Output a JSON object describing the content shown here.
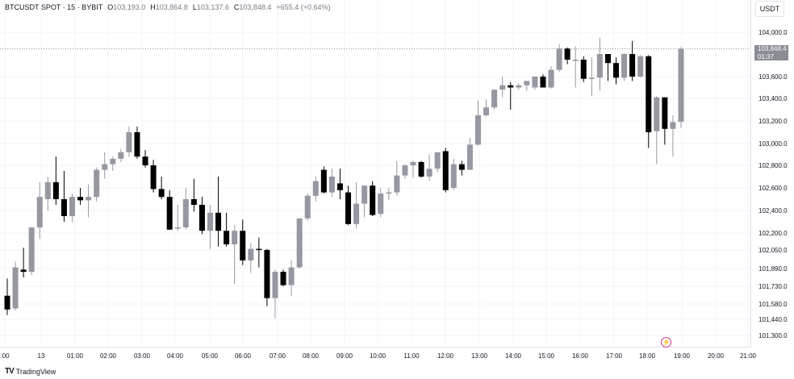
{
  "header": {
    "symbol": "BTCUSDT SPOT · 15 · BYBIT",
    "o_label": "O",
    "o_value": "103,193.0",
    "h_label": "H",
    "h_value": "103,864.8",
    "l_label": "L",
    "l_value": "103,137.6",
    "c_label": "C",
    "c_value": "103,848.4",
    "change": "+655.4 (+0.64%)"
  },
  "currency_button": "USDT",
  "price_badge": {
    "price": "103,848.4",
    "countdown": "01:37"
  },
  "footer": {
    "logo": "TV",
    "brand": "TradingView"
  },
  "icons": {
    "alerts": "lightning-icon"
  },
  "colors": {
    "up": "#9598a1",
    "down": "#000000",
    "grid": "#f0f3fa",
    "badge": "#8a8d95"
  },
  "chart_data": {
    "type": "candlestick",
    "title": "BTCUSDT SPOT · 15 · BYBIT",
    "y_tick_labels": [
      "104,000.0",
      "103,600.0",
      "103,400.0",
      "103,200.0",
      "103,000.0",
      "102,800.0",
      "102,600.0",
      "102,400.0",
      "102,200.0",
      "102,050.0",
      "101,890.0",
      "101,730.0",
      "101,580.0",
      "101,440.0",
      "101,300.0"
    ],
    "x_tick_labels": [
      ":00",
      "13",
      "01:00",
      "02:00",
      "03:00",
      "04:00",
      "05:00",
      "06:00",
      "07:00",
      "08:00",
      "09:00",
      "10:00",
      "11:00",
      "12:00",
      "13:00",
      "14:00",
      "15:00",
      "16:00",
      "17:00",
      "18:00",
      "19:00",
      "20:00",
      "21:00"
    ],
    "last_price": 103848.4,
    "candles": [
      {
        "o": 101650,
        "h": 101800,
        "l": 101480,
        "c": 101530
      },
      {
        "o": 101540,
        "h": 101950,
        "l": 101520,
        "c": 101900
      },
      {
        "o": 101880,
        "h": 102070,
        "l": 101810,
        "c": 101860
      },
      {
        "o": 101860,
        "h": 102250,
        "l": 101830,
        "c": 102250
      },
      {
        "o": 102250,
        "h": 102650,
        "l": 102150,
        "c": 102520
      },
      {
        "o": 102500,
        "h": 102700,
        "l": 102400,
        "c": 102650
      },
      {
        "o": 102650,
        "h": 102880,
        "l": 102450,
        "c": 102500
      },
      {
        "o": 102500,
        "h": 102750,
        "l": 102300,
        "c": 102350
      },
      {
        "o": 102350,
        "h": 102550,
        "l": 102300,
        "c": 102520
      },
      {
        "o": 102520,
        "h": 102600,
        "l": 102450,
        "c": 102490
      },
      {
        "o": 102490,
        "h": 102630,
        "l": 102340,
        "c": 102520
      },
      {
        "o": 102520,
        "h": 102780,
        "l": 102480,
        "c": 102760
      },
      {
        "o": 102760,
        "h": 102920,
        "l": 102680,
        "c": 102810
      },
      {
        "o": 102810,
        "h": 102880,
        "l": 102750,
        "c": 102860
      },
      {
        "o": 102860,
        "h": 102950,
        "l": 102830,
        "c": 102920
      },
      {
        "o": 102920,
        "h": 103150,
        "l": 102880,
        "c": 103100
      },
      {
        "o": 103100,
        "h": 103150,
        "l": 102860,
        "c": 102880
      },
      {
        "o": 102880,
        "h": 102940,
        "l": 102780,
        "c": 102800
      },
      {
        "o": 102800,
        "h": 102850,
        "l": 102560,
        "c": 102590
      },
      {
        "o": 102590,
        "h": 102700,
        "l": 102500,
        "c": 102520
      },
      {
        "o": 102520,
        "h": 102580,
        "l": 102230,
        "c": 102230
      },
      {
        "o": 102240,
        "h": 102450,
        "l": 102220,
        "c": 102250
      },
      {
        "o": 102250,
        "h": 102600,
        "l": 102230,
        "c": 102500
      },
      {
        "o": 102500,
        "h": 102680,
        "l": 102390,
        "c": 102450
      },
      {
        "o": 102450,
        "h": 102520,
        "l": 102190,
        "c": 102220
      },
      {
        "o": 102220,
        "h": 102450,
        "l": 102060,
        "c": 102380
      },
      {
        "o": 102380,
        "h": 102700,
        "l": 102080,
        "c": 102220
      },
      {
        "o": 102220,
        "h": 102380,
        "l": 102080,
        "c": 102100
      },
      {
        "o": 102100,
        "h": 102270,
        "l": 101750,
        "c": 102220
      },
      {
        "o": 102220,
        "h": 102320,
        "l": 101920,
        "c": 101960
      },
      {
        "o": 101960,
        "h": 102110,
        "l": 101850,
        "c": 102060
      },
      {
        "o": 102060,
        "h": 102160,
        "l": 101900,
        "c": 102050
      },
      {
        "o": 102050,
        "h": 102060,
        "l": 101560,
        "c": 101630
      },
      {
        "o": 101630,
        "h": 101880,
        "l": 101450,
        "c": 101860
      },
      {
        "o": 101860,
        "h": 101880,
        "l": 101730,
        "c": 101740
      },
      {
        "o": 101740,
        "h": 101960,
        "l": 101650,
        "c": 101900
      },
      {
        "o": 101900,
        "h": 102330,
        "l": 101890,
        "c": 102330
      },
      {
        "o": 102330,
        "h": 102550,
        "l": 102310,
        "c": 102530
      },
      {
        "o": 102530,
        "h": 102700,
        "l": 102480,
        "c": 102660
      },
      {
        "o": 102760,
        "h": 102790,
        "l": 102550,
        "c": 102560
      },
      {
        "o": 102560,
        "h": 102770,
        "l": 102520,
        "c": 102700
      },
      {
        "o": 102640,
        "h": 102770,
        "l": 102500,
        "c": 102580
      },
      {
        "o": 102560,
        "h": 102620,
        "l": 102270,
        "c": 102280
      },
      {
        "o": 102280,
        "h": 102650,
        "l": 102240,
        "c": 102460
      },
      {
        "o": 102460,
        "h": 102620,
        "l": 102340,
        "c": 102620
      },
      {
        "o": 102620,
        "h": 102660,
        "l": 102350,
        "c": 102360
      },
      {
        "o": 102370,
        "h": 102600,
        "l": 102340,
        "c": 102550
      },
      {
        "o": 102550,
        "h": 102600,
        "l": 102490,
        "c": 102560
      },
      {
        "o": 102560,
        "h": 102840,
        "l": 102530,
        "c": 102710
      },
      {
        "o": 102710,
        "h": 102810,
        "l": 102680,
        "c": 102800
      },
      {
        "o": 102800,
        "h": 102840,
        "l": 102690,
        "c": 102830
      },
      {
        "o": 102830,
        "h": 102840,
        "l": 102690,
        "c": 102700
      },
      {
        "o": 102700,
        "h": 102900,
        "l": 102660,
        "c": 102770
      },
      {
        "o": 102770,
        "h": 102920,
        "l": 102740,
        "c": 102920
      },
      {
        "o": 102930,
        "h": 102960,
        "l": 102560,
        "c": 102580
      },
      {
        "o": 102600,
        "h": 102860,
        "l": 102580,
        "c": 102810
      },
      {
        "o": 102810,
        "h": 102840,
        "l": 102710,
        "c": 102760
      },
      {
        "o": 102760,
        "h": 103050,
        "l": 102760,
        "c": 102990
      },
      {
        "o": 102990,
        "h": 103380,
        "l": 102980,
        "c": 103250
      },
      {
        "o": 103250,
        "h": 103390,
        "l": 103240,
        "c": 103320
      },
      {
        "o": 103320,
        "h": 103460,
        "l": 103300,
        "c": 103480
      },
      {
        "o": 103480,
        "h": 103600,
        "l": 103410,
        "c": 103520
      },
      {
        "o": 103520,
        "h": 103550,
        "l": 103300,
        "c": 103500
      },
      {
        "o": 103500,
        "h": 103540,
        "l": 103480,
        "c": 103520
      },
      {
        "o": 103520,
        "h": 103560,
        "l": 103470,
        "c": 103560
      },
      {
        "o": 103500,
        "h": 103590,
        "l": 103480,
        "c": 103600
      },
      {
        "o": 103600,
        "h": 103620,
        "l": 103500,
        "c": 103500
      },
      {
        "o": 103500,
        "h": 103690,
        "l": 103490,
        "c": 103660
      },
      {
        "o": 103660,
        "h": 103890,
        "l": 103640,
        "c": 103850
      },
      {
        "o": 103850,
        "h": 103860,
        "l": 103710,
        "c": 103750
      },
      {
        "o": 103740,
        "h": 103870,
        "l": 103500,
        "c": 103750
      },
      {
        "o": 103750,
        "h": 103780,
        "l": 103550,
        "c": 103580
      },
      {
        "o": 103580,
        "h": 103770,
        "l": 103420,
        "c": 103590
      },
      {
        "o": 103590,
        "h": 103950,
        "l": 103470,
        "c": 103800
      },
      {
        "o": 103800,
        "h": 103790,
        "l": 103560,
        "c": 103720
      },
      {
        "o": 103720,
        "h": 103770,
        "l": 103530,
        "c": 103590
      },
      {
        "o": 103590,
        "h": 103810,
        "l": 103560,
        "c": 103800
      },
      {
        "o": 103800,
        "h": 103920,
        "l": 103560,
        "c": 103600
      },
      {
        "o": 103600,
        "h": 103790,
        "l": 103590,
        "c": 103780
      },
      {
        "o": 103780,
        "h": 103790,
        "l": 102960,
        "c": 103100
      },
      {
        "o": 103110,
        "h": 103420,
        "l": 102810,
        "c": 103410
      },
      {
        "o": 103410,
        "h": 103400,
        "l": 102990,
        "c": 103130
      },
      {
        "o": 103130,
        "h": 103250,
        "l": 102880,
        "c": 103190
      },
      {
        "o": 103193,
        "h": 103864.8,
        "l": 103137.6,
        "c": 103848.4
      }
    ]
  }
}
